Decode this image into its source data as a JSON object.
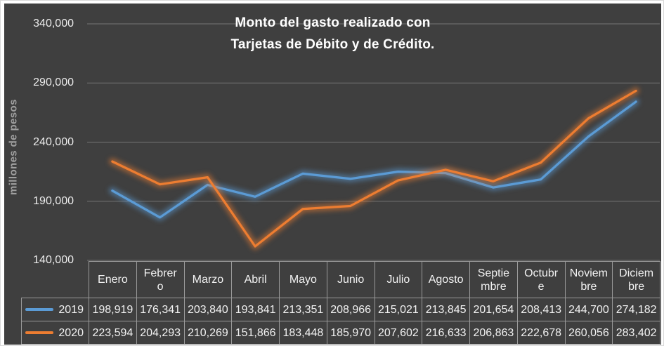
{
  "chart": {
    "title_lines": [
      "Monto del gasto realizado con",
      "Tarjetas de Débito y de Crédito."
    ],
    "colors": {
      "background": "#3f3f3f",
      "grid": "#757575",
      "table_border": "#9a9a9a",
      "title_text": "#ffffff",
      "tick_text": "#ececec",
      "y_axis_title_text": "#a0a0a0"
    }
  },
  "chart_data": {
    "type": "line",
    "title": "Monto del gasto realizado con Tarjetas de Débito y de Crédito.",
    "xlabel": "",
    "ylabel": "millones de pesos",
    "categories": [
      "Enero",
      "Febrero",
      "Marzo",
      "Abril",
      "Mayo",
      "Junio",
      "Julio",
      "Agosto",
      "Septiembre",
      "Octubre",
      "Noviembre",
      "Diciembre"
    ],
    "series": [
      {
        "name": "2019",
        "color": "#5B9BD5",
        "values": [
          198919,
          176341,
          203840,
          193841,
          213351,
          208966,
          215021,
          213845,
          201654,
          208413,
          244700,
          274182
        ]
      },
      {
        "name": "2020",
        "color": "#ED7D31",
        "values": [
          223594,
          204293,
          210269,
          151866,
          183448,
          185970,
          207602,
          216633,
          206863,
          222678,
          260056,
          283402
        ]
      }
    ],
    "ylim": [
      140000,
      340000
    ],
    "yticks": [
      140000,
      190000,
      240000,
      290000,
      340000
    ],
    "ytick_labels": [
      "140,000",
      "190,000",
      "240,000",
      "290,000",
      "340,000"
    ],
    "grid": true,
    "line_glow": true,
    "legend_position": "data-table-left",
    "data_table": {
      "header_display": [
        "Enero",
        "Febrer\no",
        "Marzo",
        "Abril",
        "Mayo",
        "Junio",
        "Julio",
        "Agosto",
        "Septie\nmbre",
        "Octubr\ne",
        "Noviem\nbre",
        "Diciem\nbre"
      ]
    }
  }
}
